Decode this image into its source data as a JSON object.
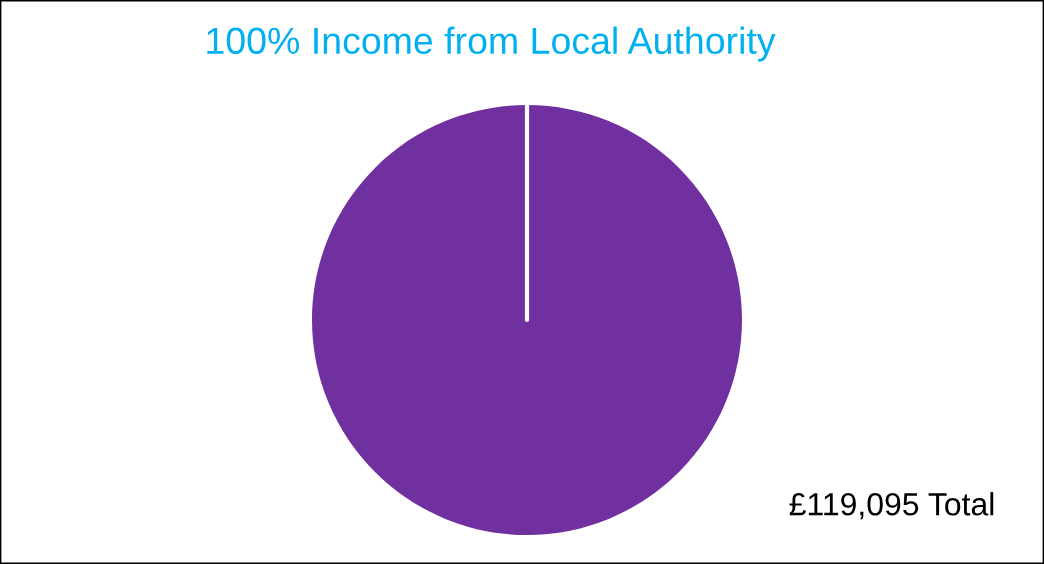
{
  "chart_data": {
    "type": "pie",
    "title": "100% Income from Local Authority",
    "categories": [
      null
    ],
    "values": [
      100
    ],
    "colors": [
      "#7030a0"
    ],
    "annotations": [
      "£119,095 Total"
    ],
    "legend": false
  }
}
